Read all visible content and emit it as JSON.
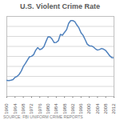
{
  "chart_data": {
    "type": "line",
    "title": "U.S. Violent Crime Rate",
    "caption": "SOURCE: FBI UNIFORM CRIME REPORTS",
    "x": [
      1960,
      1961,
      1962,
      1963,
      1964,
      1965,
      1966,
      1967,
      1968,
      1969,
      1970,
      1971,
      1972,
      1973,
      1974,
      1975,
      1976,
      1977,
      1978,
      1979,
      1980,
      1981,
      1982,
      1983,
      1984,
      1985,
      1986,
      1987,
      1988,
      1989,
      1990,
      1991,
      1992,
      1993,
      1994,
      1995,
      1996,
      1997,
      1998,
      1999,
      2000,
      2001,
      2002,
      2003,
      2004,
      2005,
      2006,
      2007,
      2008,
      2009,
      2010,
      2011,
      2012
    ],
    "values": [
      160.9,
      158.1,
      162.3,
      168.2,
      190.6,
      200.2,
      220.0,
      253.2,
      298.4,
      328.7,
      363.5,
      396.0,
      401.0,
      417.4,
      461.1,
      487.8,
      467.8,
      475.9,
      497.8,
      548.9,
      596.6,
      594.3,
      571.1,
      537.7,
      539.9,
      556.6,
      620.1,
      612.5,
      640.6,
      666.9,
      729.6,
      758.2,
      757.7,
      747.1,
      713.6,
      684.5,
      636.6,
      611.0,
      567.6,
      523.0,
      506.5,
      504.5,
      494.4,
      475.8,
      463.2,
      469.0,
      479.3,
      471.8,
      458.6,
      431.9,
      404.5,
      387.1,
      386.9
    ],
    "color": "#4f81bd",
    "xlim": [
      1960,
      2012
    ],
    "xticks": [
      1960,
      1964,
      1968,
      1972,
      1976,
      1980,
      1984,
      1988,
      1992,
      1996,
      2000,
      2004,
      2008,
      2012
    ],
    "ylim": [
      0,
      800
    ],
    "yticks": [
      0,
      100,
      200,
      300,
      400,
      500,
      600,
      700,
      800
    ],
    "grid": true,
    "tick_labels": "x"
  }
}
